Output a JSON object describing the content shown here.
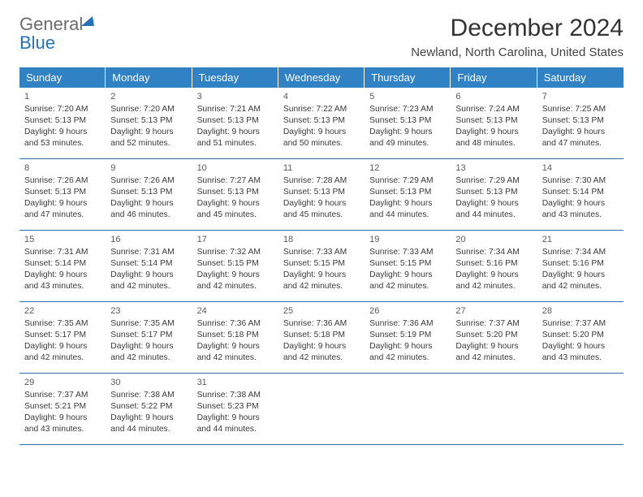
{
  "logo": {
    "word1": "General",
    "word2": "Blue"
  },
  "title": "December 2024",
  "subtitle": "Newland, North Carolina, United States",
  "colors": {
    "header_bg": "#3182c4",
    "header_text": "#ffffff",
    "rule": "#2f6fa5",
    "brand_blue": "#2672b8",
    "text": "#333333"
  },
  "weekdays": [
    "Sunday",
    "Monday",
    "Tuesday",
    "Wednesday",
    "Thursday",
    "Friday",
    "Saturday"
  ],
  "days": [
    {
      "n": "1",
      "sr": "Sunrise: 7:20 AM",
      "ss": "Sunset: 5:13 PM",
      "dl1": "Daylight: 9 hours",
      "dl2": "and 53 minutes."
    },
    {
      "n": "2",
      "sr": "Sunrise: 7:20 AM",
      "ss": "Sunset: 5:13 PM",
      "dl1": "Daylight: 9 hours",
      "dl2": "and 52 minutes."
    },
    {
      "n": "3",
      "sr": "Sunrise: 7:21 AM",
      "ss": "Sunset: 5:13 PM",
      "dl1": "Daylight: 9 hours",
      "dl2": "and 51 minutes."
    },
    {
      "n": "4",
      "sr": "Sunrise: 7:22 AM",
      "ss": "Sunset: 5:13 PM",
      "dl1": "Daylight: 9 hours",
      "dl2": "and 50 minutes."
    },
    {
      "n": "5",
      "sr": "Sunrise: 7:23 AM",
      "ss": "Sunset: 5:13 PM",
      "dl1": "Daylight: 9 hours",
      "dl2": "and 49 minutes."
    },
    {
      "n": "6",
      "sr": "Sunrise: 7:24 AM",
      "ss": "Sunset: 5:13 PM",
      "dl1": "Daylight: 9 hours",
      "dl2": "and 48 minutes."
    },
    {
      "n": "7",
      "sr": "Sunrise: 7:25 AM",
      "ss": "Sunset: 5:13 PM",
      "dl1": "Daylight: 9 hours",
      "dl2": "and 47 minutes."
    },
    {
      "n": "8",
      "sr": "Sunrise: 7:26 AM",
      "ss": "Sunset: 5:13 PM",
      "dl1": "Daylight: 9 hours",
      "dl2": "and 47 minutes."
    },
    {
      "n": "9",
      "sr": "Sunrise: 7:26 AM",
      "ss": "Sunset: 5:13 PM",
      "dl1": "Daylight: 9 hours",
      "dl2": "and 46 minutes."
    },
    {
      "n": "10",
      "sr": "Sunrise: 7:27 AM",
      "ss": "Sunset: 5:13 PM",
      "dl1": "Daylight: 9 hours",
      "dl2": "and 45 minutes."
    },
    {
      "n": "11",
      "sr": "Sunrise: 7:28 AM",
      "ss": "Sunset: 5:13 PM",
      "dl1": "Daylight: 9 hours",
      "dl2": "and 45 minutes."
    },
    {
      "n": "12",
      "sr": "Sunrise: 7:29 AM",
      "ss": "Sunset: 5:13 PM",
      "dl1": "Daylight: 9 hours",
      "dl2": "and 44 minutes."
    },
    {
      "n": "13",
      "sr": "Sunrise: 7:29 AM",
      "ss": "Sunset: 5:13 PM",
      "dl1": "Daylight: 9 hours",
      "dl2": "and 44 minutes."
    },
    {
      "n": "14",
      "sr": "Sunrise: 7:30 AM",
      "ss": "Sunset: 5:14 PM",
      "dl1": "Daylight: 9 hours",
      "dl2": "and 43 minutes."
    },
    {
      "n": "15",
      "sr": "Sunrise: 7:31 AM",
      "ss": "Sunset: 5:14 PM",
      "dl1": "Daylight: 9 hours",
      "dl2": "and 43 minutes."
    },
    {
      "n": "16",
      "sr": "Sunrise: 7:31 AM",
      "ss": "Sunset: 5:14 PM",
      "dl1": "Daylight: 9 hours",
      "dl2": "and 42 minutes."
    },
    {
      "n": "17",
      "sr": "Sunrise: 7:32 AM",
      "ss": "Sunset: 5:15 PM",
      "dl1": "Daylight: 9 hours",
      "dl2": "and 42 minutes."
    },
    {
      "n": "18",
      "sr": "Sunrise: 7:33 AM",
      "ss": "Sunset: 5:15 PM",
      "dl1": "Daylight: 9 hours",
      "dl2": "and 42 minutes."
    },
    {
      "n": "19",
      "sr": "Sunrise: 7:33 AM",
      "ss": "Sunset: 5:15 PM",
      "dl1": "Daylight: 9 hours",
      "dl2": "and 42 minutes."
    },
    {
      "n": "20",
      "sr": "Sunrise: 7:34 AM",
      "ss": "Sunset: 5:16 PM",
      "dl1": "Daylight: 9 hours",
      "dl2": "and 42 minutes."
    },
    {
      "n": "21",
      "sr": "Sunrise: 7:34 AM",
      "ss": "Sunset: 5:16 PM",
      "dl1": "Daylight: 9 hours",
      "dl2": "and 42 minutes."
    },
    {
      "n": "22",
      "sr": "Sunrise: 7:35 AM",
      "ss": "Sunset: 5:17 PM",
      "dl1": "Daylight: 9 hours",
      "dl2": "and 42 minutes."
    },
    {
      "n": "23",
      "sr": "Sunrise: 7:35 AM",
      "ss": "Sunset: 5:17 PM",
      "dl1": "Daylight: 9 hours",
      "dl2": "and 42 minutes."
    },
    {
      "n": "24",
      "sr": "Sunrise: 7:36 AM",
      "ss": "Sunset: 5:18 PM",
      "dl1": "Daylight: 9 hours",
      "dl2": "and 42 minutes."
    },
    {
      "n": "25",
      "sr": "Sunrise: 7:36 AM",
      "ss": "Sunset: 5:18 PM",
      "dl1": "Daylight: 9 hours",
      "dl2": "and 42 minutes."
    },
    {
      "n": "26",
      "sr": "Sunrise: 7:36 AM",
      "ss": "Sunset: 5:19 PM",
      "dl1": "Daylight: 9 hours",
      "dl2": "and 42 minutes."
    },
    {
      "n": "27",
      "sr": "Sunrise: 7:37 AM",
      "ss": "Sunset: 5:20 PM",
      "dl1": "Daylight: 9 hours",
      "dl2": "and 42 minutes."
    },
    {
      "n": "28",
      "sr": "Sunrise: 7:37 AM",
      "ss": "Sunset: 5:20 PM",
      "dl1": "Daylight: 9 hours",
      "dl2": "and 43 minutes."
    },
    {
      "n": "29",
      "sr": "Sunrise: 7:37 AM",
      "ss": "Sunset: 5:21 PM",
      "dl1": "Daylight: 9 hours",
      "dl2": "and 43 minutes."
    },
    {
      "n": "30",
      "sr": "Sunrise: 7:38 AM",
      "ss": "Sunset: 5:22 PM",
      "dl1": "Daylight: 9 hours",
      "dl2": "and 44 minutes."
    },
    {
      "n": "31",
      "sr": "Sunrise: 7:38 AM",
      "ss": "Sunset: 5:23 PM",
      "dl1": "Daylight: 9 hours",
      "dl2": "and 44 minutes."
    }
  ]
}
